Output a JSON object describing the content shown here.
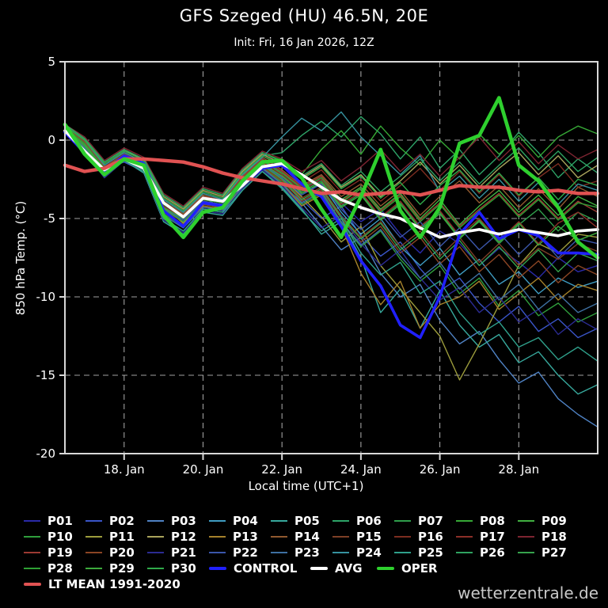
{
  "title": "GFS Szeged (HU) 46.5N, 20E",
  "subtitle": "Init: Fri, 16 Jan 2026, 12Z",
  "watermark": "wetterzentrale.de",
  "chart_data": {
    "type": "line",
    "title": "GFS Szeged (HU) 46.5N, 20E",
    "subtitle": "Init: Fri, 16 Jan 2026, 12Z",
    "xlabel": "Local time (UTC+1)",
    "ylabel": "850 hPa Temp. (°C)",
    "background": "#000000",
    "grid": "dashed",
    "grid_color": "#c8c8c8",
    "frame_color": "#d8d8d8",
    "ylim": [
      -20,
      5
    ],
    "yticks": [
      5,
      0,
      -5,
      -10,
      -15,
      -20
    ],
    "xlim": [
      0,
      13.5
    ],
    "x_step_days": 0.5,
    "xticks": [
      {
        "day": 1.5,
        "label": "18. Jan"
      },
      {
        "day": 3.5,
        "label": "20. Jan"
      },
      {
        "day": 5.5,
        "label": "22. Jan"
      },
      {
        "day": 7.5,
        "label": "24. Jan"
      },
      {
        "day": 9.5,
        "label": "26. Jan"
      },
      {
        "day": 11.5,
        "label": "28. Jan"
      }
    ],
    "members": [
      {
        "name": "P01",
        "color": "#2a2aa8",
        "values": [
          0.6,
          -0.5,
          -2.1,
          -1.0,
          -1.6,
          -4.2,
          -5.0,
          -3.8,
          -4.0,
          -2.6,
          -1.4,
          -2.0,
          -3.1,
          -2.5,
          -4.0,
          -5.2,
          -4.4,
          -6.0,
          -7.2,
          -5.8,
          -6.6,
          -8.0,
          -6.9,
          -7.8,
          -8.8,
          -7.5,
          -8.4,
          -8.0
        ]
      },
      {
        "name": "P02",
        "color": "#3a55c8",
        "values": [
          0.8,
          -0.2,
          -1.8,
          -1.4,
          -2.0,
          -4.8,
          -5.6,
          -4.2,
          -4.5,
          -3.0,
          -1.8,
          -2.6,
          -3.8,
          -5.0,
          -4.2,
          -6.1,
          -7.4,
          -6.5,
          -8.2,
          -9.6,
          -8.8,
          -10.4,
          -11.6,
          -10.6,
          -12.2,
          -11.4,
          -12.6,
          -12.0
        ]
      },
      {
        "name": "P03",
        "color": "#4f82c4",
        "values": [
          0.5,
          -0.6,
          -2.3,
          -1.1,
          -1.7,
          -5.0,
          -5.8,
          -4.4,
          -4.6,
          -2.8,
          -1.6,
          -2.4,
          -4.0,
          -5.5,
          -7.0,
          -6.2,
          -8.5,
          -10.0,
          -9.2,
          -11.5,
          -13.0,
          -12.2,
          -14.0,
          -15.5,
          -14.8,
          -16.5,
          -17.5,
          -18.3
        ]
      },
      {
        "name": "P04",
        "color": "#3f9cc2",
        "values": [
          0.7,
          -0.3,
          -1.9,
          -0.9,
          -1.5,
          -4.0,
          -4.8,
          -3.6,
          -4.4,
          -2.4,
          -1.2,
          -2.2,
          -3.4,
          -2.8,
          -4.6,
          -6.0,
          -5.0,
          -6.8,
          -8.0,
          -6.9,
          -8.6,
          -7.6,
          -9.2,
          -8.4,
          -9.8,
          -8.8,
          -9.4,
          -9.0
        ]
      },
      {
        "name": "P05",
        "color": "#37a89c",
        "values": [
          0.6,
          -0.7,
          -2.4,
          -1.3,
          -2.1,
          -5.2,
          -6.0,
          -4.6,
          -4.8,
          -3.2,
          -2.0,
          -3.0,
          -4.4,
          -6.0,
          -5.2,
          -7.5,
          -11.0,
          -9.5,
          -12.0,
          -9.6,
          -11.8,
          -13.2,
          -12.4,
          -14.2,
          -13.5,
          -15.0,
          -16.2,
          -15.6
        ]
      },
      {
        "name": "P06",
        "color": "#2ea468",
        "values": [
          0.9,
          0.0,
          -1.6,
          -0.8,
          -1.4,
          -3.8,
          -4.6,
          -3.4,
          -3.8,
          -2.2,
          -1.0,
          -0.8,
          0.3,
          1.2,
          0.2,
          1.5,
          0.4,
          -1.2,
          0.2,
          -1.8,
          -0.6,
          -2.2,
          -1.0,
          0.5,
          -0.8,
          -2.4,
          -1.2,
          -2.1
        ]
      },
      {
        "name": "P07",
        "color": "#2f9e4b",
        "values": [
          0.7,
          -0.4,
          -2.0,
          -1.2,
          -1.8,
          -4.4,
          -5.1,
          -3.9,
          -4.1,
          -2.7,
          -1.5,
          -2.3,
          -3.3,
          -2.6,
          -4.2,
          -3.4,
          -5.0,
          -4.0,
          -5.6,
          -4.6,
          -6.2,
          -5.2,
          -6.6,
          -5.4,
          -4.4,
          -5.8,
          -4.6,
          -5.2
        ]
      },
      {
        "name": "P08",
        "color": "#36a836",
        "values": [
          1.0,
          0.1,
          -1.5,
          -0.7,
          -1.2,
          -3.5,
          -4.3,
          -3.1,
          -3.5,
          -1.9,
          -0.8,
          -1.3,
          -2.2,
          -0.6,
          0.6,
          -0.9,
          0.9,
          -0.5,
          -1.6,
          0.0,
          -1.2,
          0.4,
          -0.9,
          0.3,
          -1.1,
          0.2,
          0.9,
          0.4
        ]
      },
      {
        "name": "P09",
        "color": "#41b041",
        "values": [
          0.8,
          -0.1,
          -1.7,
          -1.0,
          -1.6,
          -4.1,
          -4.9,
          -3.7,
          -3.9,
          -2.5,
          -1.3,
          -2.1,
          -3.0,
          -2.3,
          -3.8,
          -3.0,
          -4.4,
          -3.4,
          -5.0,
          -3.8,
          -5.4,
          -4.2,
          -3.2,
          -4.6,
          -3.5,
          -4.8,
          -3.6,
          -4.2
        ]
      },
      {
        "name": "P10",
        "color": "#2f9e3c",
        "values": [
          0.6,
          -0.5,
          -2.2,
          -1.1,
          -1.9,
          -4.7,
          -5.5,
          -4.1,
          -4.3,
          -2.9,
          -1.7,
          -2.7,
          -4.1,
          -3.4,
          -5.3,
          -6.8,
          -5.8,
          -7.6,
          -9.0,
          -8.0,
          -9.8,
          -8.8,
          -10.6,
          -9.6,
          -11.2,
          -10.4,
          -11.6,
          -11.0
        ]
      },
      {
        "name": "P11",
        "color": "#9d9d3c",
        "values": [
          0.7,
          -0.3,
          -1.8,
          -1.3,
          -2.0,
          -4.3,
          -5.3,
          -4.0,
          -4.4,
          -2.6,
          -1.4,
          -2.4,
          -3.6,
          -4.9,
          -6.5,
          -5.5,
          -8.0,
          -9.5,
          -11.0,
          -12.5,
          -15.3,
          -13.0,
          -10.5,
          -8.0,
          -6.6,
          -7.2,
          -6.0,
          -6.2
        ]
      },
      {
        "name": "P12",
        "color": "#aaa45c",
        "values": [
          0.9,
          0.0,
          -1.4,
          -0.6,
          -1.3,
          -3.6,
          -4.4,
          -3.2,
          -3.6,
          -2.0,
          -0.9,
          -1.5,
          -2.4,
          -1.6,
          -3.0,
          -2.2,
          -3.6,
          -2.6,
          -1.4,
          -2.8,
          -1.6,
          -3.0,
          -1.8,
          -0.8,
          -2.2,
          -1.0,
          -2.4,
          -1.6
        ]
      },
      {
        "name": "P13",
        "color": "#a5812b",
        "values": [
          0.5,
          -0.6,
          -2.1,
          -1.2,
          -1.8,
          -4.6,
          -5.4,
          -4.2,
          -4.4,
          -3.0,
          -1.8,
          -2.8,
          -4.2,
          -3.5,
          -5.5,
          -8.5,
          -10.5,
          -9.0,
          -12.0,
          -10.5,
          -10.0,
          -9.0,
          -10.8,
          -9.8,
          -8.8,
          -10.2,
          -9.2,
          -9.6
        ]
      },
      {
        "name": "P14",
        "color": "#90592f",
        "values": [
          0.8,
          -0.2,
          -1.9,
          -0.9,
          -1.5,
          -3.9,
          -4.7,
          -3.5,
          -3.9,
          -2.3,
          -1.1,
          -1.9,
          -2.9,
          -2.2,
          -3.6,
          -2.8,
          -4.2,
          -3.2,
          -4.8,
          -3.6,
          -2.6,
          -4.0,
          -2.9,
          -4.3,
          -3.1,
          -4.4,
          -3.0,
          -3.6
        ]
      },
      {
        "name": "P15",
        "color": "#7d3f26",
        "values": [
          0.6,
          -0.4,
          -2.0,
          -1.1,
          -1.7,
          -4.5,
          -5.2,
          -4.0,
          -4.2,
          -2.8,
          -1.6,
          -2.5,
          -3.7,
          -3.0,
          -4.8,
          -6.2,
          -5.2,
          -6.8,
          -5.8,
          -7.4,
          -6.2,
          -7.8,
          -6.6,
          -8.0,
          -6.9,
          -7.6,
          -6.6,
          -7.1
        ]
      },
      {
        "name": "P16",
        "color": "#7c2d20",
        "values": [
          0.9,
          0.1,
          -1.5,
          -0.8,
          -1.4,
          -3.7,
          -4.5,
          -3.3,
          -3.7,
          -2.1,
          -1.0,
          -1.7,
          -2.7,
          -1.9,
          -3.3,
          -2.5,
          -3.9,
          -2.9,
          -1.8,
          -3.2,
          -2.0,
          -3.4,
          -2.2,
          -3.6,
          -2.4,
          -1.5,
          -3.0,
          -2.6
        ]
      },
      {
        "name": "P17",
        "color": "#8c2f28",
        "values": [
          0.7,
          -0.3,
          -1.8,
          -1.0,
          -1.6,
          -4.2,
          -5.0,
          -3.8,
          -4.0,
          -2.6,
          -1.4,
          -2.2,
          -3.2,
          -2.5,
          -4.1,
          -3.3,
          -4.9,
          -3.9,
          -5.5,
          -4.5,
          -6.1,
          -5.0,
          -6.4,
          -5.2,
          -6.6,
          -5.3,
          -4.6,
          -5.6
        ]
      },
      {
        "name": "P18",
        "color": "#7d2431",
        "values": [
          1.0,
          0.2,
          -1.3,
          -0.5,
          -1.1,
          -3.4,
          -4.2,
          -3.0,
          -3.4,
          -1.8,
          -0.7,
          -1.2,
          -2.0,
          -1.3,
          -2.6,
          -1.7,
          -0.6,
          -2.0,
          -0.9,
          -2.3,
          -1.1,
          0.2,
          -1.3,
          -0.1,
          -1.5,
          -0.3,
          -1.2,
          -0.6
        ]
      },
      {
        "name": "P19",
        "color": "#9c3a32",
        "values": [
          0.8,
          -0.1,
          -1.7,
          -0.9,
          -1.5,
          -4.0,
          -4.8,
          -3.6,
          -3.8,
          -2.4,
          -1.2,
          -2.0,
          -3.0,
          -2.3,
          -3.9,
          -3.1,
          -4.5,
          -3.5,
          -5.1,
          -4.0,
          -5.5,
          -4.4,
          -3.4,
          -4.8,
          -3.7,
          -5.0,
          -3.9,
          -4.6
        ]
      },
      {
        "name": "P20",
        "color": "#8b4524",
        "values": [
          0.6,
          -0.5,
          -2.1,
          -1.2,
          -1.8,
          -4.6,
          -5.4,
          -4.1,
          -4.3,
          -2.9,
          -1.7,
          -2.6,
          -3.9,
          -3.2,
          -5.0,
          -6.5,
          -5.5,
          -7.2,
          -6.2,
          -7.9,
          -6.8,
          -8.4,
          -7.3,
          -8.8,
          -7.7,
          -9.1,
          -8.0,
          -8.6
        ]
      },
      {
        "name": "P21",
        "color": "#2b2b92",
        "values": [
          0.5,
          -0.7,
          -2.4,
          -1.3,
          -2.0,
          -5.1,
          -5.9,
          -4.5,
          -4.7,
          -3.1,
          -1.9,
          -2.9,
          -4.3,
          -5.6,
          -4.8,
          -6.6,
          -8.0,
          -7.0,
          -8.8,
          -10.2,
          -9.4,
          -11.0,
          -10.0,
          -11.6,
          -10.8,
          -12.4,
          -11.4,
          -12.1
        ]
      },
      {
        "name": "P22",
        "color": "#3b56aa",
        "values": [
          0.7,
          -0.4,
          -1.9,
          -1.1,
          -1.7,
          -4.3,
          -5.1,
          -3.9,
          -4.1,
          -2.7,
          -1.5,
          -2.4,
          -3.5,
          -2.8,
          -4.4,
          -5.7,
          -4.7,
          -6.2,
          -5.2,
          -6.8,
          -5.6,
          -7.0,
          -5.9,
          -7.3,
          -6.1,
          -7.5,
          -6.3,
          -6.6
        ]
      },
      {
        "name": "P23",
        "color": "#3e70a2",
        "values": [
          0.6,
          -0.5,
          -2.2,
          -1.2,
          -1.9,
          -4.8,
          -5.6,
          -4.3,
          -4.5,
          -3.0,
          -1.8,
          -2.8,
          -4.0,
          -3.3,
          -5.2,
          -6.7,
          -5.7,
          -7.4,
          -8.8,
          -7.8,
          -9.5,
          -8.5,
          -10.2,
          -9.2,
          -10.8,
          -9.8,
          -11.0,
          -10.4
        ]
      },
      {
        "name": "P24",
        "color": "#36929f",
        "values": [
          0.9,
          0.0,
          -1.6,
          -0.8,
          -1.4,
          -3.8,
          -4.6,
          -3.4,
          -3.8,
          -2.2,
          -1.1,
          0.2,
          1.4,
          0.6,
          1.8,
          0.2,
          -1.0,
          -2.2,
          -1.0,
          -3.3,
          -2.3,
          -3.7,
          -2.5,
          -3.9,
          -2.7,
          -4.1,
          -2.8,
          -3.2
        ]
      },
      {
        "name": "P25",
        "color": "#2fa08b",
        "values": [
          0.5,
          -0.6,
          -2.3,
          -1.3,
          -2.0,
          -5.0,
          -5.8,
          -4.4,
          -4.6,
          -3.2,
          -2.0,
          -3.1,
          -4.5,
          -5.8,
          -5.0,
          -7.2,
          -8.6,
          -7.8,
          -9.8,
          -9.0,
          -11.0,
          -12.4,
          -11.6,
          -13.2,
          -12.6,
          -14.0,
          -13.2,
          -14.1
        ]
      },
      {
        "name": "P26",
        "color": "#2fa260",
        "values": [
          1.0,
          0.1,
          -1.4,
          -0.6,
          -1.2,
          -3.5,
          -4.3,
          -3.1,
          -3.5,
          -1.9,
          -0.8,
          -1.4,
          -2.3,
          -1.5,
          -2.9,
          -2.0,
          -3.3,
          -2.3,
          -1.2,
          -2.6,
          -1.4,
          -2.8,
          -1.6,
          -0.5,
          -1.9,
          -0.7,
          -2.0,
          -1.1
        ]
      },
      {
        "name": "P27",
        "color": "#36a24c",
        "values": [
          0.6,
          -0.4,
          -2.0,
          -1.1,
          -1.8,
          -4.4,
          -5.2,
          -4.0,
          -4.2,
          -2.8,
          -1.6,
          -2.5,
          -3.8,
          -3.1,
          -4.9,
          -6.3,
          -5.3,
          -7.0,
          -6.0,
          -7.6,
          -6.4,
          -8.0,
          -6.8,
          -8.2,
          -7.0,
          -8.4,
          -7.2,
          -7.7
        ]
      },
      {
        "name": "P28",
        "color": "#2fa034",
        "values": [
          0.8,
          -0.2,
          -1.8,
          -1.0,
          -1.6,
          -4.1,
          -4.9,
          -3.7,
          -3.9,
          -2.5,
          -1.3,
          -2.1,
          -3.1,
          -2.4,
          -4.0,
          -3.1,
          -4.6,
          -3.6,
          -5.2,
          -4.1,
          -5.6,
          -4.5,
          -3.5,
          -4.9,
          -3.8,
          -5.1,
          -4.0,
          -4.3
        ]
      },
      {
        "name": "P29",
        "color": "#3caa3c",
        "values": [
          0.7,
          -0.3,
          -1.9,
          -1.1,
          -1.7,
          -4.3,
          -5.0,
          -3.8,
          -4.0,
          -2.6,
          -1.5,
          -2.3,
          -3.4,
          -2.7,
          -4.3,
          -3.5,
          -5.1,
          -4.1,
          -5.7,
          -4.7,
          -6.3,
          -5.1,
          -6.5,
          -5.3,
          -6.7,
          -5.5,
          -6.4,
          -5.9
        ]
      },
      {
        "name": "P30",
        "color": "#30aa4a",
        "values": [
          0.9,
          0.0,
          -1.5,
          -0.7,
          -1.3,
          -3.7,
          -4.5,
          -3.3,
          -3.7,
          -2.1,
          -1.0,
          -1.6,
          -2.5,
          -1.7,
          -3.1,
          -2.3,
          -3.7,
          -2.7,
          -4.1,
          -2.9,
          -1.9,
          -3.3,
          -2.1,
          -3.5,
          -2.4,
          -3.8,
          -2.5,
          -2.9
        ]
      }
    ],
    "main_series": [
      {
        "name": "CONTROL",
        "color": "#2020ff",
        "width": 3.6,
        "values": [
          0.5,
          -0.8,
          -2.0,
          -1.0,
          -1.5,
          -4.5,
          -5.5,
          -4.0,
          -4.2,
          -2.8,
          -1.8,
          -1.6,
          -2.8,
          -3.6,
          -5.5,
          -7.7,
          -9.3,
          -11.8,
          -12.6,
          -10.0,
          -6.0,
          -4.6,
          -6.3,
          -5.7,
          -6.1,
          -7.2,
          -7.2,
          -7.3
        ]
      },
      {
        "name": "AVG",
        "color": "#ffffff",
        "width": 3.6,
        "values": [
          0.6,
          -0.7,
          -1.9,
          -1.2,
          -1.8,
          -4.0,
          -4.9,
          -3.7,
          -3.9,
          -2.9,
          -1.7,
          -1.5,
          -2.2,
          -3.0,
          -3.8,
          -4.3,
          -4.7,
          -5.0,
          -5.6,
          -6.2,
          -5.9,
          -5.7,
          -6.0,
          -5.7,
          -5.9,
          -6.1,
          -5.8,
          -5.7
        ]
      },
      {
        "name": "LT MEAN 1991-2020",
        "color": "#e05252",
        "width": 4.4,
        "values": [
          -1.6,
          -2.0,
          -1.8,
          -1.2,
          -1.2,
          -1.3,
          -1.4,
          -1.7,
          -2.1,
          -2.4,
          -2.6,
          -2.8,
          -3.1,
          -3.4,
          -3.3,
          -3.5,
          -3.4,
          -3.3,
          -3.5,
          -3.2,
          -2.9,
          -3.0,
          -3.0,
          -3.2,
          -3.3,
          -3.2,
          -3.4,
          -3.4
        ]
      },
      {
        "name": "OPER",
        "color": "#2ed02e",
        "width": 4.6,
        "values": [
          1.0,
          -0.9,
          -2.2,
          -1.2,
          -1.6,
          -4.8,
          -6.2,
          -4.6,
          -4.3,
          -2.6,
          -1.4,
          -1.3,
          -2.4,
          -4.4,
          -6.2,
          -3.6,
          -0.6,
          -4.5,
          -6.2,
          -4.3,
          -0.2,
          0.3,
          2.7,
          -1.6,
          -2.6,
          -4.3,
          -6.5,
          -7.5
        ]
      }
    ],
    "legend_position": "bottom"
  }
}
